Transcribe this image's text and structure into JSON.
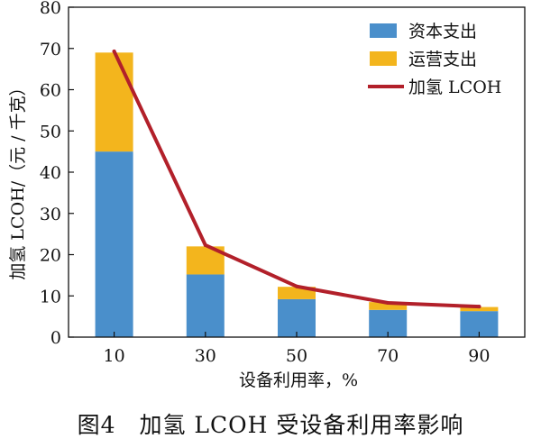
{
  "chart_data": {
    "type": "bar",
    "categories": [
      "10",
      "30",
      "50",
      "70",
      "90"
    ],
    "series": [
      {
        "name": "资本支出",
        "kind": "stacked-bar",
        "color": "#4a8fcb",
        "values": [
          45.0,
          15.2,
          9.2,
          6.6,
          6.3
        ]
      },
      {
        "name": "运营支出",
        "kind": "stacked-bar",
        "color": "#f3b51d",
        "values": [
          24.0,
          6.8,
          3.0,
          1.9,
          1.0
        ]
      },
      {
        "name": "加氢 LCOH",
        "kind": "line",
        "color": "#b2202a",
        "values": [
          69.3,
          22.3,
          12.3,
          8.3,
          7.4
        ]
      }
    ],
    "xlabel": "设备利用率，%",
    "ylabel": "加氢 LCOH/（元 / 千克）",
    "ylim": [
      0,
      80
    ],
    "yticks": [
      0,
      10,
      20,
      30,
      40,
      50,
      60,
      70,
      80
    ],
    "grid": false,
    "legend_position": "top-right"
  },
  "caption": "图4　加氢 LCOH 受设备利用率影响"
}
